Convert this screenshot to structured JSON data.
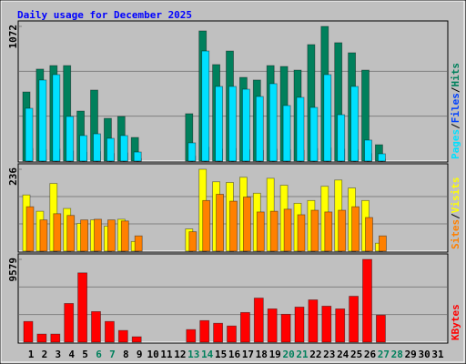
{
  "chart_data": [
    {
      "type": "bar",
      "title": "Daily usage for December 2025",
      "categories": [
        "1",
        "2",
        "3",
        "4",
        "5",
        "6",
        "7",
        "8",
        "9",
        "10",
        "11",
        "12",
        "13",
        "14",
        "15",
        "16",
        "17",
        "18",
        "19",
        "20",
        "21",
        "22",
        "23",
        "24",
        "25",
        "26",
        "27",
        "28",
        "29",
        "30",
        "31"
      ],
      "weekend_color": "#00805c",
      "weekend_indices": [
        5,
        6,
        12,
        13,
        19,
        20,
        26,
        27
      ],
      "ylim": [
        0,
        1072
      ],
      "yticks": [
        1072
      ],
      "legend_separator": "/",
      "series": [
        {
          "name": "Hits",
          "color": "#00805c",
          "values": [
            550,
            732,
            760,
            760,
            398,
            565,
            340,
            355,
            188,
            0,
            0,
            0,
            377,
            1036,
            768,
            876,
            666,
            645,
            760,
            753,
            724,
            927,
            1072,
            942,
            862,
            724,
            130,
            0,
            0,
            0,
            0
          ]
        },
        {
          "name": "Files",
          "color": "#0040ff",
          "values": [
            100,
            90,
            95,
            80,
            70,
            75,
            60,
            65,
            20,
            0,
            0,
            0,
            40,
            110,
            95,
            100,
            90,
            85,
            95,
            90,
            85,
            100,
            105,
            95,
            90,
            60,
            15,
            0,
            0,
            0,
            0
          ]
        },
        {
          "name": "Pages",
          "color": "#00e0ff",
          "values": [
            420,
            645,
            688,
            355,
            203,
            217,
            181,
            203,
            72,
            0,
            0,
            0,
            145,
            876,
            594,
            594,
            572,
            514,
            616,
            442,
            507,
            427,
            688,
            369,
            594,
            167,
            58,
            0,
            0,
            0,
            0
          ]
        }
      ]
    },
    {
      "type": "bar",
      "ylim": [
        0,
        236
      ],
      "yticks": [
        236
      ],
      "legend_separator": "/",
      "series": [
        {
          "name": "Visits",
          "color": "#ffff00",
          "values": [
            162,
            115,
            195,
            123,
            80,
            90,
            72,
            92,
            28,
            0,
            0,
            0,
            64,
            236,
            200,
            198,
            213,
            167,
            210,
            190,
            138,
            146,
            187,
            205,
            182,
            146,
            23,
            0,
            0,
            0,
            0
          ]
        },
        {
          "name": "Sites",
          "color": "#ff8000",
          "values": [
            128,
            90,
            108,
            103,
            90,
            92,
            90,
            87,
            44,
            0,
            0,
            0,
            56,
            146,
            164,
            144,
            156,
            113,
            115,
            121,
            105,
            118,
            113,
            118,
            128,
            97,
            44,
            0,
            0,
            0,
            0
          ]
        }
      ]
    },
    {
      "type": "bar",
      "ylim": [
        0,
        9579
      ],
      "yticks": [
        9579
      ],
      "series": [
        {
          "name": "KBytes",
          "color": "#ff0000",
          "values": [
            2395,
            937,
            937,
            4477,
            8017,
            3540,
            2395,
            1354,
            625,
            0,
            0,
            0,
            1458,
            2499,
            2187,
            1874,
            3436,
            5102,
            3853,
            3228,
            4061,
            4894,
            4165,
            3853,
            5310,
            9579,
            3124,
            0,
            0,
            0,
            0
          ]
        }
      ]
    }
  ]
}
